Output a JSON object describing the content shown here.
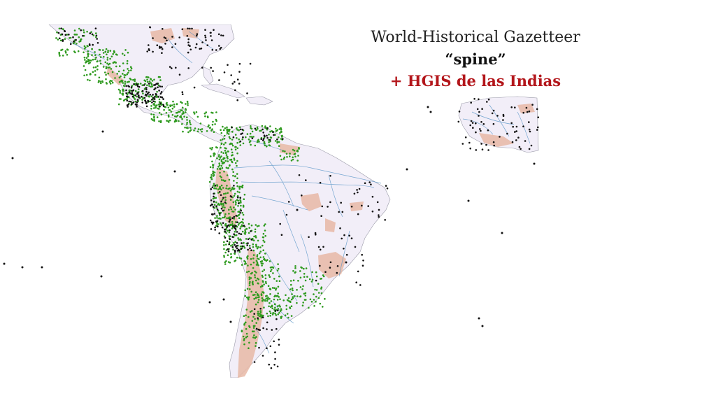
{
  "slide": {
    "title_line1": "World-Historical Gazetteer",
    "title_line2": "“spine”",
    "title_line3": "+ HGIS de las Indias"
  },
  "colors": {
    "background": "#ffffff",
    "land": "#f2eef8",
    "terrain_highlight": "#e8b9a6",
    "rivers": "#4d8fc4",
    "spine_points": "#111111",
    "hgis_points": "#2e9a1e",
    "subtitle_red": "#b3161b"
  },
  "legend_meaning": {
    "black_dots": "World-Historical Gazetteer spine places",
    "green_dots": "HGIS de las Indias places"
  }
}
